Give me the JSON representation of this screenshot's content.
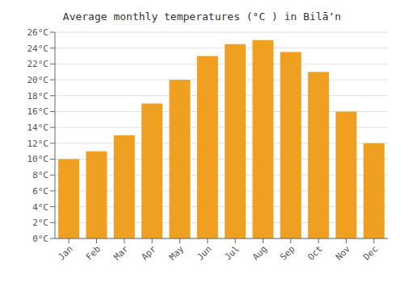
{
  "chart_data": {
    "type": "bar",
    "title": "Average monthly temperatures (°C ) in Bilāʻn",
    "categories": [
      "Jan",
      "Feb",
      "Mar",
      "Apr",
      "May",
      "Jun",
      "Jul",
      "Aug",
      "Sep",
      "Oct",
      "Nov",
      "Dec"
    ],
    "values": [
      10.0,
      11.0,
      13.0,
      17.0,
      20.0,
      23.0,
      24.5,
      25.0,
      23.5,
      21.0,
      16.0,
      12.0
    ],
    "color": "#F0A020",
    "ylim": [
      0,
      26
    ],
    "yticks": [
      {
        "value": 0,
        "label": "0°C"
      },
      {
        "value": 2,
        "label": "2°C"
      },
      {
        "value": 4,
        "label": "4°C"
      },
      {
        "value": 6,
        "label": "6°C"
      },
      {
        "value": 8,
        "label": "8°C"
      },
      {
        "value": 10,
        "label": "10°C"
      },
      {
        "value": 12,
        "label": "12°C"
      },
      {
        "value": 14,
        "label": "14°C"
      },
      {
        "value": 16,
        "label": "16°C"
      },
      {
        "value": 18,
        "label": "18°C"
      },
      {
        "value": 20,
        "label": "20°C"
      },
      {
        "value": 22,
        "label": "22°C"
      },
      {
        "value": 24,
        "label": "24°C"
      },
      {
        "value": 26,
        "label": "26°C"
      }
    ],
    "grid": true
  }
}
